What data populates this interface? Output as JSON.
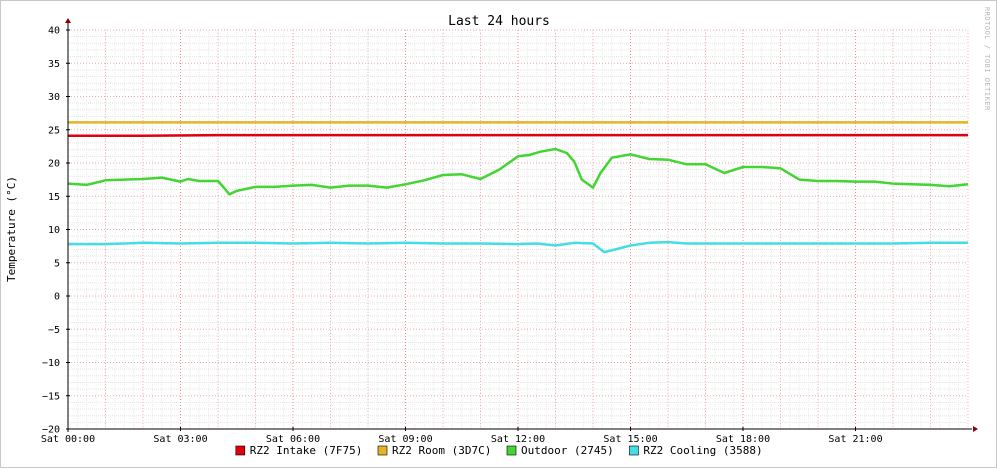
{
  "chart_data": {
    "type": "line",
    "title": "Last 24 hours",
    "ylabel": "Temperature (°C)",
    "watermark": "RRDTOOL / TOBI OETIKER",
    "ylim": [
      -20,
      40
    ],
    "yticks": [
      40,
      35,
      30,
      25,
      20,
      15,
      10,
      5,
      0,
      -5,
      -10,
      -15,
      -20
    ],
    "xlim": [
      0,
      24
    ],
    "xticks": [
      {
        "v": 0,
        "label": "Sat 00:00"
      },
      {
        "v": 3,
        "label": "Sat 03:00"
      },
      {
        "v": 6,
        "label": "Sat 06:00"
      },
      {
        "v": 9,
        "label": "Sat 09:00"
      },
      {
        "v": 12,
        "label": "Sat 12:00"
      },
      {
        "v": 15,
        "label": "Sat 15:00"
      },
      {
        "v": 18,
        "label": "Sat 18:00"
      },
      {
        "v": 21,
        "label": "Sat 21:00"
      }
    ],
    "grid": true,
    "legend_position": "bottom",
    "series": [
      {
        "name": "RZ2 Intake (7F75)",
        "color": "#e0000e",
        "x": [
          0,
          2,
          4,
          6,
          8,
          10,
          12,
          14,
          16,
          18,
          20,
          22,
          24
        ],
        "values": [
          24.1,
          24.1,
          24.2,
          24.2,
          24.2,
          24.2,
          24.2,
          24.2,
          24.2,
          24.2,
          24.2,
          24.2,
          24.2
        ]
      },
      {
        "name": "RZ2 Room (3D7C)",
        "color": "#e6b422",
        "x": [
          0,
          3,
          6,
          9,
          12,
          15,
          18,
          21,
          24
        ],
        "values": [
          26.1,
          26.1,
          26.1,
          26.1,
          26.1,
          26.1,
          26.1,
          26.1,
          26.1
        ]
      },
      {
        "name": "Outdoor (2745)",
        "color": "#44d434",
        "x": [
          0,
          0.5,
          1,
          1.5,
          2,
          2.5,
          3,
          3.2,
          3.5,
          4,
          4.2,
          4.3,
          4.5,
          5,
          5.5,
          6,
          6.5,
          7,
          7.5,
          8,
          8.5,
          9,
          9.5,
          10,
          10.5,
          11,
          11.5,
          12,
          12.3,
          12.6,
          13,
          13.3,
          13.5,
          13.7,
          14,
          14.2,
          14.5,
          15,
          15.5,
          16,
          16.5,
          17,
          17.5,
          18,
          18.5,
          19,
          19.5,
          20,
          20.5,
          21,
          21.5,
          22,
          22.5,
          23,
          23.5,
          24
        ],
        "values": [
          16.9,
          16.7,
          17.4,
          17.5,
          17.6,
          17.8,
          17.2,
          17.6,
          17.3,
          17.3,
          16,
          15.3,
          15.8,
          16.4,
          16.4,
          16.6,
          16.7,
          16.3,
          16.6,
          16.6,
          16.3,
          16.8,
          17.4,
          18.2,
          18.3,
          17.6,
          19,
          21,
          21.2,
          21.7,
          22.1,
          21.5,
          20.2,
          17.5,
          16.3,
          18.5,
          20.8,
          21.3,
          20.6,
          20.5,
          19.8,
          19.8,
          18.5,
          19.4,
          19.4,
          19.2,
          17.5,
          17.3,
          17.3,
          17.2,
          17.2,
          16.9,
          16.8,
          16.7,
          16.5,
          16.8
        ]
      },
      {
        "name": "RZ2 Cooling (3588)",
        "color": "#45dde3",
        "x": [
          0,
          1,
          2,
          3,
          4,
          5,
          6,
          7,
          8,
          9,
          10,
          11,
          12,
          12.5,
          13,
          13.5,
          14,
          14.3,
          14.6,
          15,
          15.5,
          16,
          16.5,
          17,
          18,
          19,
          20,
          21,
          22,
          23,
          24
        ],
        "values": [
          7.8,
          7.8,
          8.0,
          7.9,
          8.0,
          8.0,
          7.9,
          8.0,
          7.9,
          8.0,
          7.9,
          7.9,
          7.8,
          7.9,
          7.6,
          8.0,
          7.9,
          6.6,
          7.0,
          7.6,
          8.0,
          8.1,
          7.9,
          7.9,
          7.9,
          7.9,
          7.9,
          7.9,
          7.9,
          8.0,
          8.0
        ]
      }
    ]
  }
}
